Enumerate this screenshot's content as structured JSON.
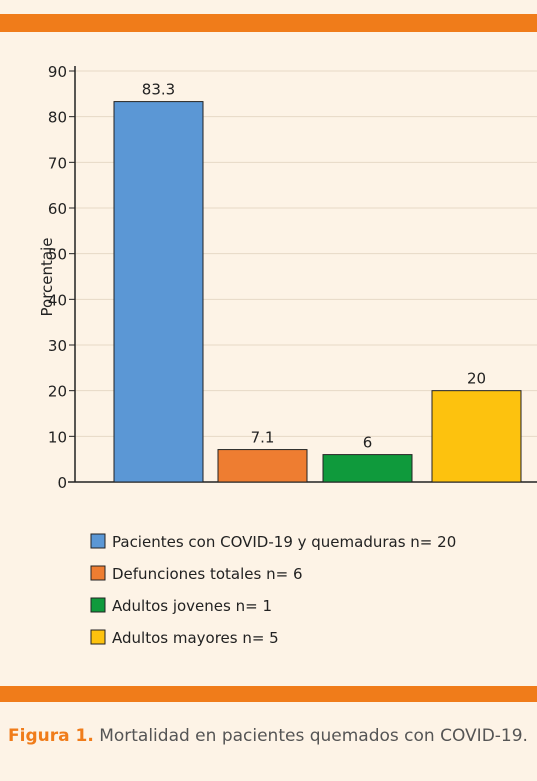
{
  "chart_data": {
    "type": "bar",
    "ylabel": "Porcentaje",
    "categories": [
      null
    ],
    "series": [
      {
        "name": "Pacientes con COVID-19 y quemaduras n= 20",
        "color": "#5b97d5",
        "values": [
          83.3
        ]
      },
      {
        "name": "Defunciones totales n= 6",
        "color": "#ee7d31",
        "values": [
          7.1
        ]
      },
      {
        "name": "Adultos jovenes n= 1",
        "color": "#0f9a3c",
        "values": [
          6
        ]
      },
      {
        "name": "Adultos mayores n= 5",
        "color": "#fdc20e",
        "values": [
          20
        ]
      }
    ],
    "ylim": [
      0,
      90
    ],
    "yticks": [
      0,
      10,
      20,
      30,
      40,
      50,
      60,
      70,
      80,
      90
    ],
    "grid": true
  },
  "caption": {
    "label": "Figura 1.",
    "text": "Mortalidad en pacientes quemados con COVID-19."
  }
}
